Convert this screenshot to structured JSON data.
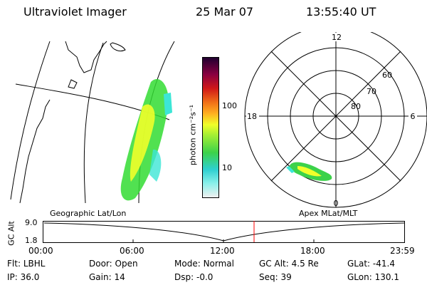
{
  "header": {
    "instrument": "Ultraviolet Imager",
    "date": "25 Mar 07",
    "time": "13:55:40 UT"
  },
  "colorbar": {
    "unit_label": "photon cm⁻²s⁻¹",
    "ticks": [
      "100",
      "10"
    ]
  },
  "polar_plot": {
    "mlt_labels": {
      "top": "12",
      "left": "18",
      "right": "6",
      "bottom": "0"
    },
    "lat_labels": [
      "60",
      "70",
      "80"
    ]
  },
  "altitude_plot": {
    "y_label": "GC Alt",
    "y_ticks": [
      "9.0",
      "1.8"
    ],
    "left_title": "Geographic Lat/Lon",
    "right_title": "Apex MLat/MLT",
    "x_ticks": [
      "00:00",
      "06:00",
      "12:00",
      "18:00",
      "23:59"
    ],
    "current_marker_color": "#ff0000"
  },
  "status": {
    "row1": [
      {
        "label": "Flt:",
        "value": "LBHL"
      },
      {
        "label": "Door:",
        "value": "Open"
      },
      {
        "label": "Mode:",
        "value": "Normal"
      },
      {
        "label": "GC Alt:",
        "value": "4.5 Re"
      },
      {
        "label": "GLat:",
        "value": "-41.4"
      }
    ],
    "row2": [
      {
        "label": "IP:",
        "value": "36.0"
      },
      {
        "label": "Gain:",
        "value": "14"
      },
      {
        "label": "Dsp:",
        "value": "-0.0"
      },
      {
        "label": "Seq:",
        "value": "39"
      },
      {
        "label": "GLon:",
        "value": "130.1"
      }
    ]
  }
}
